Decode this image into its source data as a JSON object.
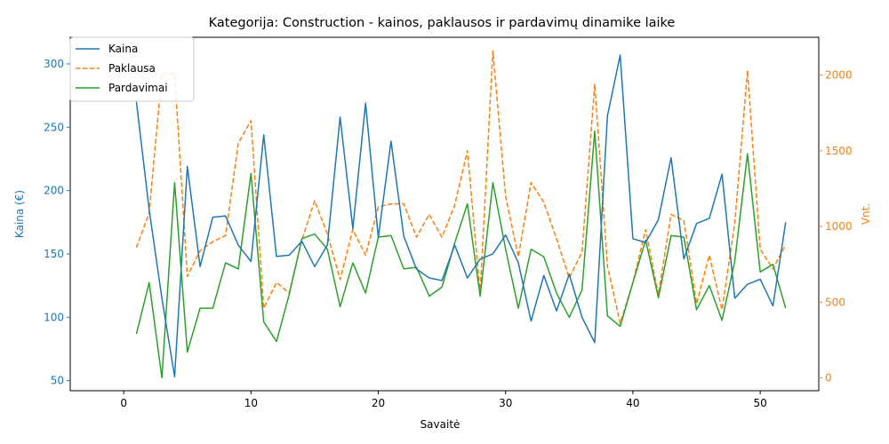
{
  "chart_data": {
    "type": "line",
    "title": "Kategorija: Construction - kainos, paklausos ir pardavimų dinamike laike",
    "xlabel": "Savaitė",
    "ylabel_left": "Kaina (€)",
    "ylabel_right": "Vnt.",
    "xlim": [
      -4.2,
      54.6
    ],
    "ylim_left": [
      42,
      321
    ],
    "ylim_right": [
      -85,
      2250
    ],
    "x_ticks": [
      0,
      10,
      20,
      30,
      40,
      50
    ],
    "y_left_ticks": [
      50,
      100,
      150,
      200,
      250,
      300
    ],
    "y_right_ticks": [
      0,
      500,
      1000,
      1500,
      2000
    ],
    "legend_position": "upper-left",
    "grid": false,
    "x": [
      1,
      2,
      3,
      4,
      5,
      6,
      7,
      8,
      9,
      10,
      11,
      12,
      13,
      14,
      15,
      16,
      17,
      18,
      19,
      20,
      21,
      22,
      23,
      24,
      25,
      26,
      27,
      28,
      29,
      30,
      31,
      32,
      33,
      34,
      35,
      36,
      37,
      38,
      39,
      40,
      41,
      42,
      43,
      44,
      45,
      46,
      47,
      48,
      49,
      50,
      51,
      52
    ],
    "series": [
      {
        "name": "Kaina",
        "axis": "left",
        "color": "#1f77b4",
        "dash": "solid",
        "values": [
          270,
          185,
          115,
          53,
          219,
          140,
          179,
          180,
          157,
          144,
          244,
          148,
          149,
          160,
          140,
          157,
          258,
          170,
          269,
          163,
          239,
          164,
          138,
          131,
          129,
          157,
          131,
          146,
          150,
          165,
          143,
          97,
          133,
          105,
          134,
          100,
          80,
          259,
          307,
          162,
          159,
          177,
          226,
          146,
          174,
          178,
          213,
          115,
          126,
          130,
          109,
          175
        ]
      },
      {
        "name": "Paklausa",
        "axis": "right",
        "color": "#ff7f0e",
        "dash": "dashed",
        "values": [
          860,
          1090,
          2010,
          2010,
          670,
          840,
          900,
          940,
          1550,
          1700,
          460,
          630,
          560,
          910,
          1170,
          950,
          650,
          980,
          810,
          1130,
          1150,
          1150,
          930,
          1080,
          930,
          1140,
          1500,
          560,
          2160,
          1200,
          800,
          1290,
          1160,
          920,
          660,
          830,
          1940,
          740,
          360,
          630,
          980,
          550,
          1080,
          1040,
          490,
          810,
          450,
          1020,
          2030,
          850,
          720,
          880
        ]
      },
      {
        "name": "Pardavimai",
        "axis": "right",
        "color": "#2ca02c",
        "dash": "solid",
        "values": [
          290,
          630,
          0,
          1290,
          170,
          460,
          460,
          760,
          720,
          1350,
          370,
          240,
          550,
          920,
          950,
          850,
          470,
          760,
          560,
          930,
          940,
          720,
          730,
          540,
          600,
          890,
          1150,
          540,
          1290,
          850,
          460,
          850,
          800,
          560,
          400,
          580,
          1630,
          410,
          340,
          630,
          910,
          530,
          940,
          930,
          450,
          610,
          380,
          770,
          1480,
          700,
          750,
          460
        ]
      }
    ]
  }
}
